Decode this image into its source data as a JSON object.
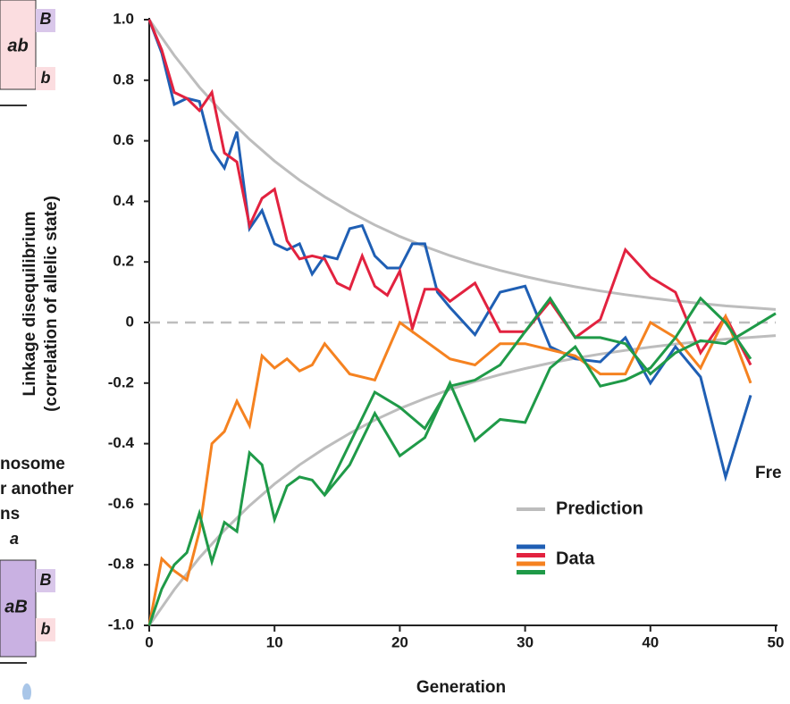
{
  "chart_data": {
    "type": "line",
    "x_label": "Generation",
    "y_label": [
      "Linkage disequilibrium",
      "(correlation of allelic state)"
    ],
    "xlim": [
      0,
      50
    ],
    "xticks": [
      0,
      10,
      20,
      30,
      40,
      50
    ],
    "ylim": [
      -1,
      1
    ],
    "yticks": [
      {
        "value": 1,
        "label": "1.0"
      },
      0.8,
      0.6,
      0.4,
      0.2,
      0,
      -0.2,
      -0.4,
      -0.6,
      -0.8,
      {
        "value": -1,
        "label": "-1.0"
      }
    ],
    "reference_line": 0,
    "legend": [
      {
        "label": "Prediction",
        "colors": [
          "#bdbdbd"
        ]
      },
      {
        "label": "Data",
        "colors": [
          "#1f5fb4",
          "#e2223f",
          "#f58220",
          "#1f9a48"
        ]
      }
    ],
    "series": [
      {
        "color": "#bdbdbd",
        "x": [
          0,
          2,
          4,
          6,
          8,
          10,
          12,
          14,
          16,
          18,
          20,
          22,
          24,
          26,
          28,
          30,
          32,
          34,
          36,
          38,
          40,
          42,
          44,
          46,
          48,
          50
        ],
        "values": [
          1,
          0.882,
          0.777,
          0.686,
          0.605,
          0.533,
          0.47,
          0.415,
          0.366,
          0.322,
          0.284,
          0.251,
          0.221,
          0.195,
          0.172,
          0.152,
          0.134,
          0.118,
          0.104,
          0.092,
          0.081,
          0.071,
          0.063,
          0.055,
          0.049,
          0.043
        ]
      },
      {
        "color": "#bdbdbd",
        "x": [
          0,
          2,
          4,
          6,
          8,
          10,
          12,
          14,
          16,
          18,
          20,
          22,
          24,
          26,
          28,
          30,
          32,
          34,
          36,
          38,
          40,
          42,
          44,
          46,
          48,
          50
        ],
        "values": [
          -1,
          -0.882,
          -0.777,
          -0.686,
          -0.605,
          -0.533,
          -0.47,
          -0.415,
          -0.366,
          -0.322,
          -0.284,
          -0.251,
          -0.221,
          -0.195,
          -0.172,
          -0.152,
          -0.134,
          -0.118,
          -0.104,
          -0.092,
          -0.081,
          -0.071,
          -0.063,
          -0.055,
          -0.049,
          -0.043
        ]
      },
      {
        "color": "#1f5fb4",
        "x": [
          0,
          1,
          2,
          3,
          4,
          5,
          6,
          7,
          8,
          9,
          10,
          11,
          12,
          13,
          14,
          15,
          16,
          17,
          18,
          19,
          20,
          21,
          22,
          23,
          24,
          26,
          28,
          30,
          32,
          34,
          36,
          38,
          40,
          42,
          44,
          46,
          48
        ],
        "values": [
          1,
          0.89,
          0.72,
          0.74,
          0.73,
          0.57,
          0.51,
          0.63,
          0.31,
          0.37,
          0.26,
          0.24,
          0.26,
          0.16,
          0.22,
          0.21,
          0.31,
          0.32,
          0.22,
          0.18,
          0.18,
          0.26,
          0.26,
          0.1,
          0.05,
          -0.04,
          0.1,
          0.12,
          -0.08,
          -0.12,
          -0.13,
          -0.05,
          -0.2,
          -0.08,
          -0.18,
          -0.51,
          -0.24
        ]
      },
      {
        "color": "#e2223f",
        "x": [
          0,
          1,
          2,
          3,
          4,
          5,
          6,
          7,
          8,
          9,
          10,
          11,
          12,
          13,
          14,
          15,
          16,
          17,
          18,
          19,
          20,
          21,
          22,
          23,
          24,
          26,
          28,
          30,
          32,
          34,
          36,
          38,
          40,
          42,
          44,
          46,
          48
        ],
        "values": [
          1,
          0.9,
          0.76,
          0.74,
          0.7,
          0.76,
          0.56,
          0.53,
          0.32,
          0.41,
          0.44,
          0.27,
          0.21,
          0.22,
          0.21,
          0.13,
          0.11,
          0.22,
          0.12,
          0.09,
          0.17,
          -0.02,
          0.11,
          0.11,
          0.07,
          0.13,
          -0.03,
          -0.03,
          0.07,
          -0.05,
          0.01,
          0.24,
          0.15,
          0.1,
          -0.1,
          0.02,
          -0.14
        ]
      },
      {
        "color": "#f58220",
        "x": [
          0,
          1,
          2,
          3,
          4,
          5,
          6,
          7,
          8,
          9,
          10,
          11,
          12,
          13,
          14,
          16,
          18,
          20,
          22,
          24,
          26,
          28,
          30,
          32,
          34,
          36,
          38,
          40,
          42,
          44,
          46,
          48
        ],
        "values": [
          -1,
          -0.78,
          -0.82,
          -0.85,
          -0.69,
          -0.4,
          -0.36,
          -0.26,
          -0.34,
          -0.11,
          -0.15,
          -0.12,
          -0.16,
          -0.14,
          -0.07,
          -0.17,
          -0.19,
          0,
          -0.06,
          -0.12,
          -0.14,
          -0.07,
          -0.07,
          -0.09,
          -0.11,
          -0.17,
          -0.17,
          0,
          -0.05,
          -0.15,
          0.02,
          -0.2
        ]
      },
      {
        "color": "#1f9a48",
        "x": [
          0,
          1,
          2,
          3,
          4,
          5,
          6,
          7,
          8,
          9,
          10,
          11,
          12,
          13,
          14,
          16,
          18,
          20,
          22,
          24,
          26,
          28,
          30,
          32,
          34,
          36,
          38,
          40,
          42,
          44,
          46,
          48
        ],
        "values": [
          -1,
          -0.88,
          -0.8,
          -0.76,
          -0.63,
          -0.79,
          -0.66,
          -0.69,
          -0.43,
          -0.47,
          -0.65,
          -0.54,
          -0.51,
          -0.52,
          -0.57,
          -0.47,
          -0.3,
          -0.44,
          -0.38,
          -0.2,
          -0.39,
          -0.32,
          -0.33,
          -0.15,
          -0.08,
          -0.21,
          -0.19,
          -0.15,
          -0.05,
          0.08,
          0,
          -0.12
        ]
      },
      {
        "color": "#1f9a48",
        "x": [
          14,
          18,
          20,
          22,
          24,
          26,
          28,
          30,
          32,
          34,
          36,
          38,
          40,
          42,
          44,
          46,
          48,
          50
        ],
        "values": [
          -0.57,
          -0.23,
          -0.28,
          -0.35,
          -0.21,
          -0.19,
          -0.14,
          -0.03,
          0.08,
          -0.05,
          -0.05,
          -0.07,
          -0.17,
          -0.1,
          -0.06,
          -0.07,
          -0.02,
          0.03
        ]
      }
    ]
  },
  "cropped_texts": [
    "ab",
    "B",
    "b",
    "nosome",
    "r another",
    "ns",
    "a",
    "aB",
    "B",
    "b",
    "Fre"
  ]
}
